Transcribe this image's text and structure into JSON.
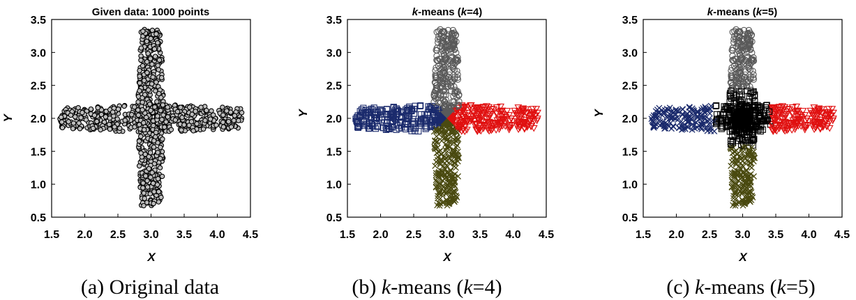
{
  "panels": [
    {
      "caption_prefix": "(a) Original data",
      "caption_italic": "",
      "caption_suffix": "",
      "title_pre": "Given data: 1000 points",
      "title_k": "",
      "title_mid": "",
      "title_k2": "",
      "title_post": "",
      "xlabel": "X",
      "ylabel": "Y"
    },
    {
      "caption_prefix": "(b) ",
      "caption_italic": "k",
      "caption_suffix": "-means (",
      "caption_italic2": "k",
      "caption_end": "=4)",
      "title_pre": "",
      "title_k": "k",
      "title_mid": "-means (",
      "title_k2": "k",
      "title_post": "=4)",
      "xlabel": "X",
      "ylabel": "Y"
    },
    {
      "caption_prefix": "(c) ",
      "caption_italic": "k",
      "caption_suffix": "-means (",
      "caption_italic2": "k",
      "caption_end": "=5)",
      "title_pre": "",
      "title_k": "k",
      "title_mid": "-means (",
      "title_k2": "k",
      "title_post": "=5)",
      "xlabel": "X",
      "ylabel": "Y"
    }
  ],
  "chart_data": [
    {
      "type": "scatter",
      "title": "Given data: 1000 points",
      "xlabel": "X",
      "ylabel": "Y",
      "xlim": [
        1.5,
        4.5
      ],
      "ylim": [
        0.5,
        3.5
      ],
      "xticks": [
        "1.5",
        "2.0",
        "2.5",
        "3.0",
        "3.5",
        "4.0",
        "4.5"
      ],
      "yticks": [
        "0.5",
        "1.0",
        "1.5",
        "2.0",
        "2.5",
        "3.0",
        "3.5"
      ],
      "grid": false,
      "point_count": 1000,
      "series": [
        {
          "marker": "circle-filled-gray",
          "color": "#000000",
          "region": {
            "x": [
              1.6,
              4.4
            ],
            "y": [
              1.8,
              2.2
            ]
          }
        },
        {
          "marker": "circle-filled-gray",
          "color": "#000000",
          "region": {
            "x": [
              2.8,
              3.2
            ],
            "y": [
              0.65,
              3.35
            ]
          }
        }
      ]
    },
    {
      "type": "scatter",
      "title": "k-means (k=4)",
      "xlabel": "X",
      "ylabel": "Y",
      "xlim": [
        1.5,
        4.5
      ],
      "ylim": [
        0.5,
        3.5
      ],
      "xticks": [
        "1.5",
        "2.0",
        "2.5",
        "3.0",
        "3.5",
        "4.0",
        "4.5"
      ],
      "yticks": [
        "0.5",
        "1.0",
        "1.5",
        "2.0",
        "2.5",
        "3.0",
        "3.5"
      ],
      "grid": false,
      "series": [
        {
          "marker": "square",
          "color": "#1a2a6c",
          "region": "left arm"
        },
        {
          "marker": "circle",
          "color": "#5a5a5a",
          "region": "top arm"
        },
        {
          "marker": "triangle-down",
          "color": "#e01010",
          "region": "right arm"
        },
        {
          "marker": "x",
          "color": "#4a4a10",
          "region": "bottom arm"
        }
      ]
    },
    {
      "type": "scatter",
      "title": "k-means (k=5)",
      "xlabel": "X",
      "ylabel": "Y",
      "xlim": [
        1.5,
        4.5
      ],
      "ylim": [
        0.5,
        3.5
      ],
      "xticks": [
        "1.5",
        "2.0",
        "2.5",
        "3.0",
        "3.5",
        "4.0",
        "4.5"
      ],
      "yticks": [
        "0.5",
        "1.0",
        "1.5",
        "2.0",
        "2.5",
        "3.0",
        "3.5"
      ],
      "grid": false,
      "series": [
        {
          "marker": "x",
          "color": "#1a2a6c",
          "region": "left arm"
        },
        {
          "marker": "circle",
          "color": "#5a5a5a",
          "region": "top arm"
        },
        {
          "marker": "triangle-down",
          "color": "#e01010",
          "region": "right arm"
        },
        {
          "marker": "x",
          "color": "#4a4a10",
          "region": "bottom arm"
        },
        {
          "marker": "square",
          "color": "#000000",
          "region": "center"
        }
      ]
    }
  ]
}
